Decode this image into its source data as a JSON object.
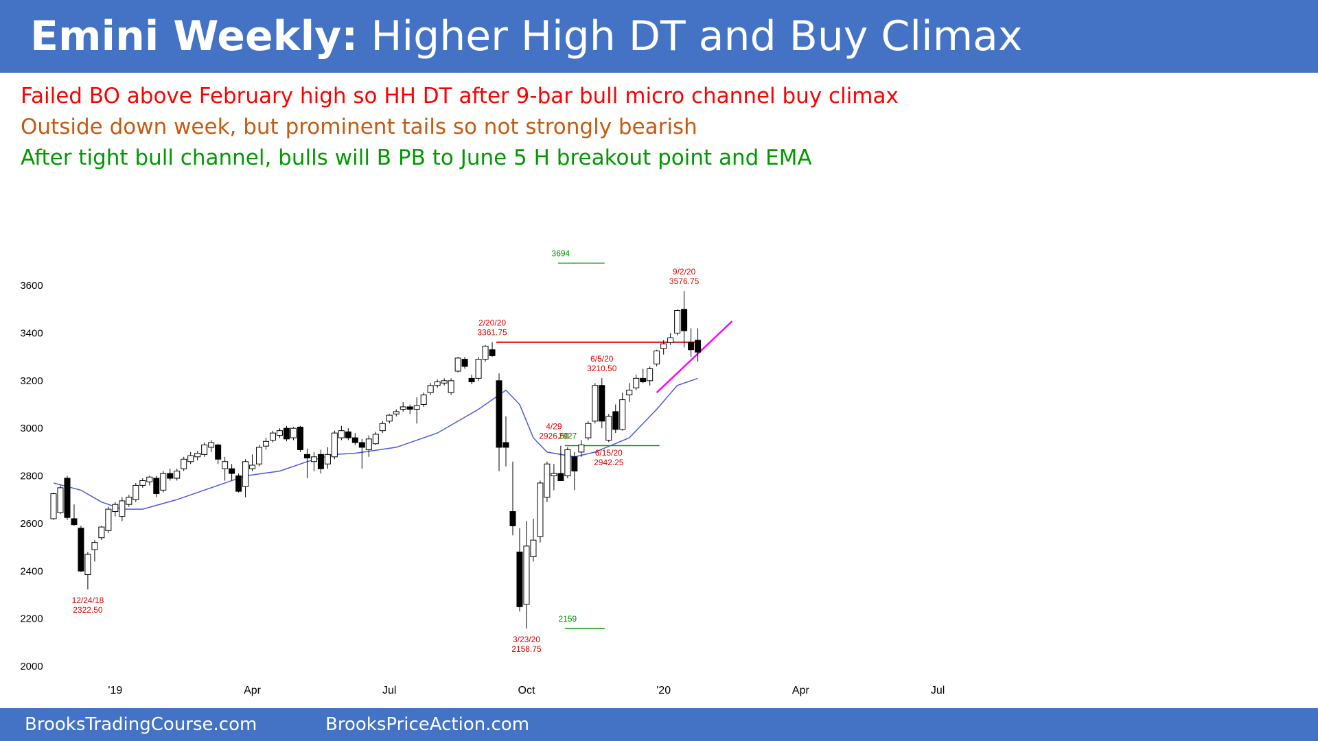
{
  "title": {
    "bold": "Emini Weekly:",
    "rest": " Higher High DT and Buy Climax"
  },
  "notes": [
    {
      "text": "Failed BO above February high so HH DT after 9-bar bull micro channel buy climax",
      "color": "#ff0000"
    },
    {
      "text": "Outside down week, but prominent tails so not strongly bearish",
      "color": "#c55a11"
    },
    {
      "text": "After tight bull channel, bulls will B PB to June 5 H breakout point and EMA",
      "color": "#009900"
    }
  ],
  "footer": {
    "left": "BrooksTradingCourse.com",
    "right": "BrooksPriceAction.com"
  },
  "chart_data": {
    "type": "candlestick",
    "ylim": [
      2000,
      3700
    ],
    "y_ticks": [
      2000,
      2200,
      2400,
      2600,
      2800,
      3000,
      3200,
      3400,
      3600
    ],
    "x_tick_labels": [
      {
        "label": "'19",
        "bar": 9
      },
      {
        "label": "Apr",
        "bar": 29
      },
      {
        "label": "Jul",
        "bar": 49
      },
      {
        "label": "Oct",
        "bar": 69
      },
      {
        "label": "'20",
        "bar": 89
      },
      {
        "label": "Apr",
        "bar": 109
      },
      {
        "label": "Jul",
        "bar": 129
      }
    ],
    "candles": [
      {
        "o": 2620,
        "h": 2730,
        "l": 2615,
        "c": 2725
      },
      {
        "o": 2645,
        "h": 2760,
        "l": 2640,
        "c": 2750
      },
      {
        "o": 2790,
        "h": 2800,
        "l": 2615,
        "c": 2625
      },
      {
        "o": 2620,
        "h": 2680,
        "l": 2590,
        "c": 2595
      },
      {
        "o": 2580,
        "h": 2590,
        "l": 2395,
        "c": 2400
      },
      {
        "o": 2385,
        "h": 2480,
        "l": 2322.5,
        "c": 2470
      },
      {
        "o": 2490,
        "h": 2530,
        "l": 2440,
        "c": 2520
      },
      {
        "o": 2540,
        "h": 2590,
        "l": 2530,
        "c": 2585
      },
      {
        "o": 2570,
        "h": 2670,
        "l": 2560,
        "c": 2660
      },
      {
        "o": 2650,
        "h": 2690,
        "l": 2630,
        "c": 2680
      },
      {
        "o": 2630,
        "h": 2710,
        "l": 2610,
        "c": 2695
      },
      {
        "o": 2680,
        "h": 2720,
        "l": 2670,
        "c": 2710
      },
      {
        "o": 2700,
        "h": 2770,
        "l": 2690,
        "c": 2760
      },
      {
        "o": 2760,
        "h": 2790,
        "l": 2750,
        "c": 2780
      },
      {
        "o": 2775,
        "h": 2800,
        "l": 2760,
        "c": 2795
      },
      {
        "o": 2790,
        "h": 2800,
        "l": 2710,
        "c": 2725
      },
      {
        "o": 2740,
        "h": 2820,
        "l": 2730,
        "c": 2810
      },
      {
        "o": 2810,
        "h": 2830,
        "l": 2780,
        "c": 2790
      },
      {
        "o": 2790,
        "h": 2830,
        "l": 2780,
        "c": 2820
      },
      {
        "o": 2830,
        "h": 2880,
        "l": 2820,
        "c": 2870
      },
      {
        "o": 2860,
        "h": 2900,
        "l": 2850,
        "c": 2885
      },
      {
        "o": 2880,
        "h": 2905,
        "l": 2865,
        "c": 2895
      },
      {
        "o": 2890,
        "h": 2940,
        "l": 2880,
        "c": 2930
      },
      {
        "o": 2920,
        "h": 2950,
        "l": 2900,
        "c": 2940
      },
      {
        "o": 2930,
        "h": 2935,
        "l": 2850,
        "c": 2870
      },
      {
        "o": 2830,
        "h": 2880,
        "l": 2780,
        "c": 2860
      },
      {
        "o": 2830,
        "h": 2850,
        "l": 2780,
        "c": 2810
      },
      {
        "o": 2800,
        "h": 2810,
        "l": 2730,
        "c": 2735
      },
      {
        "o": 2755,
        "h": 2870,
        "l": 2710,
        "c": 2860
      },
      {
        "o": 2830,
        "h": 2890,
        "l": 2820,
        "c": 2845
      },
      {
        "o": 2850,
        "h": 2930,
        "l": 2840,
        "c": 2920
      },
      {
        "o": 2925,
        "h": 2960,
        "l": 2910,
        "c": 2945
      },
      {
        "o": 2950,
        "h": 2990,
        "l": 2940,
        "c": 2980
      },
      {
        "o": 2970,
        "h": 3000,
        "l": 2960,
        "c": 2990
      },
      {
        "o": 3000,
        "h": 3010,
        "l": 2945,
        "c": 2955
      },
      {
        "o": 2960,
        "h": 3005,
        "l": 2950,
        "c": 3000
      },
      {
        "o": 3005,
        "h": 3010,
        "l": 2900,
        "c": 2910
      },
      {
        "o": 2890,
        "h": 2915,
        "l": 2790,
        "c": 2875
      },
      {
        "o": 2860,
        "h": 2900,
        "l": 2820,
        "c": 2880
      },
      {
        "o": 2890,
        "h": 2910,
        "l": 2810,
        "c": 2830
      },
      {
        "o": 2850,
        "h": 2920,
        "l": 2830,
        "c": 2890
      },
      {
        "o": 2880,
        "h": 2990,
        "l": 2870,
        "c": 2980
      },
      {
        "o": 2960,
        "h": 3010,
        "l": 2950,
        "c": 2990
      },
      {
        "o": 2985,
        "h": 3000,
        "l": 2950,
        "c": 2960
      },
      {
        "o": 2960,
        "h": 2980,
        "l": 2930,
        "c": 2940
      },
      {
        "o": 2940,
        "h": 2955,
        "l": 2830,
        "c": 2920
      },
      {
        "o": 2910,
        "h": 2970,
        "l": 2880,
        "c": 2955
      },
      {
        "o": 2935,
        "h": 2985,
        "l": 2930,
        "c": 2975
      },
      {
        "o": 2990,
        "h": 3030,
        "l": 2980,
        "c": 3020
      },
      {
        "o": 3030,
        "h": 3060,
        "l": 3020,
        "c": 3055
      },
      {
        "o": 3060,
        "h": 3080,
        "l": 3050,
        "c": 3070
      },
      {
        "o": 3080,
        "h": 3110,
        "l": 3070,
        "c": 3090
      },
      {
        "o": 3090,
        "h": 3100,
        "l": 3060,
        "c": 3080
      },
      {
        "o": 3080,
        "h": 3130,
        "l": 3020,
        "c": 3095
      },
      {
        "o": 3100,
        "h": 3150,
        "l": 3090,
        "c": 3140
      },
      {
        "o": 3150,
        "h": 3190,
        "l": 3140,
        "c": 3180
      },
      {
        "o": 3180,
        "h": 3205,
        "l": 3170,
        "c": 3195
      },
      {
        "o": 3190,
        "h": 3210,
        "l": 3180,
        "c": 3200
      },
      {
        "o": 3150,
        "h": 3210,
        "l": 3140,
        "c": 3200
      },
      {
        "o": 3240,
        "h": 3300,
        "l": 3235,
        "c": 3295
      },
      {
        "o": 3290,
        "h": 3300,
        "l": 3250,
        "c": 3260
      },
      {
        "o": 3210,
        "h": 3225,
        "l": 3185,
        "c": 3195
      },
      {
        "o": 3210,
        "h": 3300,
        "l": 3200,
        "c": 3290
      },
      {
        "o": 3290,
        "h": 3350,
        "l": 3280,
        "c": 3345
      },
      {
        "o": 3330,
        "h": 3361.75,
        "l": 3300,
        "c": 3305
      },
      {
        "o": 3200,
        "h": 3230,
        "l": 2820,
        "c": 2920
      },
      {
        "o": 2940,
        "h": 3050,
        "l": 2840,
        "c": 2920
      },
      {
        "o": 2650,
        "h": 2860,
        "l": 2550,
        "c": 2590
      },
      {
        "o": 2480,
        "h": 2580,
        "l": 2230,
        "c": 2250
      },
      {
        "o": 2260,
        "h": 2610,
        "l": 2158.75,
        "c": 2505
      },
      {
        "o": 2460,
        "h": 2620,
        "l": 2440,
        "c": 2530
      },
      {
        "o": 2545,
        "h": 2780,
        "l": 2520,
        "c": 2770
      },
      {
        "o": 2710,
        "h": 2860,
        "l": 2690,
        "c": 2850
      },
      {
        "o": 2800,
        "h": 2850,
        "l": 2740,
        "c": 2810
      },
      {
        "o": 2810,
        "h": 2926.5,
        "l": 2780,
        "c": 2780
      },
      {
        "o": 2800,
        "h": 2920,
        "l": 2790,
        "c": 2910
      },
      {
        "o": 2880,
        "h": 2900,
        "l": 2740,
        "c": 2820
      },
      {
        "o": 2900,
        "h": 2950,
        "l": 2880,
        "c": 2930
      },
      {
        "o": 2960,
        "h": 3030,
        "l": 2950,
        "c": 3020
      },
      {
        "o": 3030,
        "h": 3190,
        "l": 3020,
        "c": 3180
      },
      {
        "o": 3180,
        "h": 3210.5,
        "l": 3000,
        "c": 3030
      },
      {
        "o": 2950,
        "h": 3060,
        "l": 2942.25,
        "c": 3050
      },
      {
        "o": 3070,
        "h": 3100,
        "l": 2980,
        "c": 2995
      },
      {
        "o": 2995,
        "h": 3150,
        "l": 2990,
        "c": 3120
      },
      {
        "o": 3140,
        "h": 3190,
        "l": 3110,
        "c": 3160
      },
      {
        "o": 3170,
        "h": 3225,
        "l": 3160,
        "c": 3210
      },
      {
        "o": 3210,
        "h": 3250,
        "l": 3190,
        "c": 3195
      },
      {
        "o": 3200,
        "h": 3260,
        "l": 3180,
        "c": 3250
      },
      {
        "o": 3270,
        "h": 3330,
        "l": 3260,
        "c": 3325
      },
      {
        "o": 3335,
        "h": 3370,
        "l": 3310,
        "c": 3355
      },
      {
        "o": 3360,
        "h": 3400,
        "l": 3350,
        "c": 3380
      },
      {
        "o": 3400,
        "h": 3500,
        "l": 3390,
        "c": 3495
      },
      {
        "o": 3500,
        "h": 3576.75,
        "l": 3340,
        "c": 3410
      },
      {
        "o": 3360,
        "h": 3420,
        "l": 3300,
        "c": 3330
      },
      {
        "o": 3370,
        "h": 3420,
        "l": 3280,
        "c": 3320
      }
    ],
    "ema": [
      [
        0,
        2770
      ],
      [
        4,
        2740
      ],
      [
        7,
        2690
      ],
      [
        10,
        2660
      ],
      [
        13,
        2660
      ],
      [
        18,
        2700
      ],
      [
        24,
        2760
      ],
      [
        28,
        2800
      ],
      [
        33,
        2820
      ],
      [
        37,
        2860
      ],
      [
        41,
        2890
      ],
      [
        44,
        2895
      ],
      [
        50,
        2920
      ],
      [
        56,
        2980
      ],
      [
        62,
        3080
      ],
      [
        66,
        3160
      ],
      [
        68,
        3100
      ],
      [
        70,
        2960
      ],
      [
        72,
        2900
      ],
      [
        76,
        2880
      ],
      [
        79,
        2900
      ],
      [
        84,
        2960
      ],
      [
        88,
        3080
      ],
      [
        91,
        3180
      ],
      [
        94,
        3210
      ]
    ],
    "lines": [
      {
        "kind": "resistance",
        "value": 3361.75,
        "from_bar": 65,
        "to_bar": 94,
        "color": "#e00000",
        "width": 2
      },
      {
        "kind": "target",
        "value": 3694,
        "from_bar": 74,
        "to_bar": 80,
        "color": "#009900",
        "width": 1.5
      },
      {
        "kind": "target",
        "value": 2159,
        "from_bar": 75,
        "to_bar": 80,
        "color": "#009900",
        "width": 1.5
      },
      {
        "kind": "breakout",
        "value": 2927,
        "from_bar": 75,
        "to_bar": 88,
        "color": "#009900",
        "width": 1.5
      },
      {
        "kind": "trendline",
        "from": [
          88,
          3150
        ],
        "to": [
          99,
          3450
        ],
        "color": "#ff00ff",
        "width": 2.5
      }
    ],
    "annotations": [
      {
        "lines": [
          "12/24/18",
          "2322.50"
        ],
        "bar": 5,
        "value": 2322.5,
        "position": "below",
        "color": "#e00000"
      },
      {
        "lines": [
          "2/20/20",
          "3361.75"
        ],
        "bar": 64,
        "value": 3361.75,
        "position": "above",
        "color": "#e00000"
      },
      {
        "lines": [
          "3/23/20",
          "2158.75"
        ],
        "bar": 69,
        "value": 2158.75,
        "position": "below",
        "color": "#e00000"
      },
      {
        "lines": [
          "4/29",
          "2926.50"
        ],
        "bar": 73,
        "value": 2926.5,
        "position": "above",
        "color": "#e00000"
      },
      {
        "lines": [
          "6/5/20",
          "3210.50"
        ],
        "bar": 80,
        "value": 3210.5,
        "position": "above",
        "color": "#e00000"
      },
      {
        "lines": [
          "6/15/20",
          "2942.25"
        ],
        "bar": 81,
        "value": 2942.25,
        "position": "below",
        "color": "#e00000"
      },
      {
        "lines": [
          "9/2/20",
          "3576.75"
        ],
        "bar": 92,
        "value": 3576.75,
        "position": "above",
        "color": "#e00000"
      },
      {
        "lines": [
          "3694"
        ],
        "bar": 74,
        "value": 3694,
        "position": "above",
        "color": "#009900"
      },
      {
        "lines": [
          "2159"
        ],
        "bar": 75,
        "value": 2159,
        "position": "above",
        "color": "#009900"
      },
      {
        "lines": [
          "2927"
        ],
        "bar": 75,
        "value": 2927,
        "position": "above",
        "color": "#009900"
      }
    ]
  }
}
